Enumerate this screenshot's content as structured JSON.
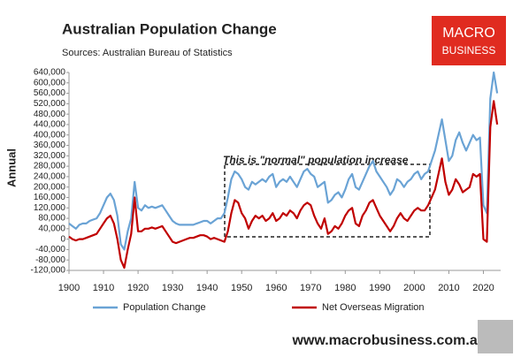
{
  "chart_data": {
    "type": "line",
    "title": "Australian Population Change",
    "subtitle": "Sources: Australian Bureau of Statistics",
    "y_label": "Annual",
    "annotation": "This is \"normal\" population increase",
    "logo": [
      "MACRO",
      "BUSINESS"
    ],
    "footer": "www.macrobusiness.com.au",
    "x": [
      1900,
      1901,
      1902,
      1903,
      1904,
      1905,
      1906,
      1907,
      1908,
      1909,
      1910,
      1911,
      1912,
      1913,
      1914,
      1915,
      1916,
      1917,
      1918,
      1919,
      1920,
      1921,
      1922,
      1923,
      1924,
      1925,
      1926,
      1927,
      1928,
      1929,
      1930,
      1931,
      1932,
      1933,
      1934,
      1935,
      1936,
      1937,
      1938,
      1939,
      1940,
      1941,
      1942,
      1943,
      1944,
      1945,
      1946,
      1947,
      1948,
      1949,
      1950,
      1951,
      1952,
      1953,
      1954,
      1955,
      1956,
      1957,
      1958,
      1959,
      1960,
      1961,
      1962,
      1963,
      1964,
      1965,
      1966,
      1967,
      1968,
      1969,
      1970,
      1971,
      1972,
      1973,
      1974,
      1975,
      1976,
      1977,
      1978,
      1979,
      1980,
      1981,
      1982,
      1983,
      1984,
      1985,
      1986,
      1987,
      1988,
      1989,
      1990,
      1991,
      1992,
      1993,
      1994,
      1995,
      1996,
      1997,
      1998,
      1999,
      2000,
      2001,
      2002,
      2003,
      2004,
      2005,
      2006,
      2007,
      2008,
      2009,
      2010,
      2011,
      2012,
      2013,
      2014,
      2015,
      2016,
      2017,
      2018,
      2019,
      2020,
      2021,
      2022,
      2023,
      2024
    ],
    "series": [
      {
        "name": "Population Change",
        "color": "#6aa3d5",
        "values": [
          60000,
          50000,
          40000,
          55000,
          60000,
          60000,
          70000,
          75000,
          80000,
          100000,
          130000,
          160000,
          175000,
          150000,
          90000,
          -20000,
          -40000,
          30000,
          80000,
          220000,
          120000,
          110000,
          130000,
          120000,
          125000,
          120000,
          125000,
          130000,
          110000,
          90000,
          70000,
          60000,
          55000,
          55000,
          55000,
          55000,
          55000,
          60000,
          65000,
          70000,
          70000,
          60000,
          70000,
          80000,
          80000,
          100000,
          160000,
          230000,
          260000,
          250000,
          230000,
          200000,
          190000,
          220000,
          210000,
          220000,
          230000,
          220000,
          240000,
          250000,
          200000,
          220000,
          230000,
          220000,
          240000,
          220000,
          200000,
          230000,
          260000,
          270000,
          250000,
          240000,
          200000,
          210000,
          220000,
          140000,
          150000,
          170000,
          180000,
          160000,
          190000,
          230000,
          250000,
          200000,
          190000,
          220000,
          250000,
          280000,
          300000,
          260000,
          240000,
          220000,
          200000,
          170000,
          190000,
          230000,
          220000,
          200000,
          220000,
          230000,
          250000,
          260000,
          230000,
          250000,
          260000,
          300000,
          340000,
          400000,
          460000,
          380000,
          300000,
          320000,
          380000,
          410000,
          370000,
          340000,
          370000,
          400000,
          380000,
          390000,
          130000,
          100000,
          540000,
          640000,
          560000
        ]
      },
      {
        "name": "Net Overseas Migration",
        "color": "#c00000",
        "values": [
          10000,
          0,
          -5000,
          0,
          0,
          5000,
          10000,
          15000,
          20000,
          40000,
          60000,
          80000,
          90000,
          60000,
          0,
          -80000,
          -110000,
          -40000,
          20000,
          160000,
          30000,
          30000,
          40000,
          40000,
          45000,
          40000,
          45000,
          50000,
          30000,
          10000,
          -10000,
          -15000,
          -10000,
          -5000,
          0,
          5000,
          5000,
          10000,
          15000,
          15000,
          10000,
          0,
          5000,
          0,
          -5000,
          -10000,
          30000,
          100000,
          150000,
          140000,
          100000,
          80000,
          40000,
          70000,
          90000,
          80000,
          90000,
          70000,
          80000,
          100000,
          70000,
          80000,
          100000,
          90000,
          110000,
          100000,
          80000,
          110000,
          130000,
          140000,
          130000,
          90000,
          60000,
          40000,
          80000,
          20000,
          30000,
          50000,
          40000,
          60000,
          90000,
          110000,
          120000,
          60000,
          50000,
          90000,
          110000,
          140000,
          150000,
          120000,
          90000,
          70000,
          50000,
          30000,
          50000,
          80000,
          100000,
          80000,
          70000,
          90000,
          110000,
          120000,
          110000,
          110000,
          130000,
          160000,
          190000,
          250000,
          310000,
          220000,
          170000,
          190000,
          230000,
          210000,
          180000,
          190000,
          200000,
          250000,
          240000,
          250000,
          0,
          -10000,
          430000,
          530000,
          440000
        ]
      }
    ],
    "xlim": [
      1900,
      2025
    ],
    "xticks": [
      1900,
      1910,
      1920,
      1930,
      1940,
      1950,
      1960,
      1970,
      1980,
      1990,
      2000,
      2010,
      2020
    ],
    "ylim": [
      -120000,
      640000
    ],
    "yticks": [
      {
        "value": -120000,
        "label": "-120,000"
      },
      {
        "value": -80000,
        "label": "-80,000"
      },
      {
        "value": -40000,
        "label": "-40,000"
      },
      0,
      {
        "value": 40000,
        "label": "40,000"
      },
      {
        "value": 80000,
        "label": "80,000"
      },
      {
        "value": 120000,
        "label": "120,000"
      },
      {
        "value": 160000,
        "label": "160,000"
      },
      {
        "value": 200000,
        "label": "200,000"
      },
      {
        "value": 240000,
        "label": "240,000"
      },
      {
        "value": 280000,
        "label": "280,000"
      },
      {
        "value": 320000,
        "label": "320,000"
      },
      {
        "value": 360000,
        "label": "360,000"
      },
      {
        "value": 400000,
        "label": "400,000"
      },
      {
        "value": 440000,
        "label": "440,000"
      },
      {
        "value": 480000,
        "label": "480,000"
      },
      {
        "value": 520000,
        "label": "520,000"
      },
      {
        "value": 560000,
        "label": "560,000"
      },
      {
        "value": 600000,
        "label": "600,000"
      },
      {
        "value": 640000,
        "label": "640,000"
      }
    ],
    "grid": false
  }
}
